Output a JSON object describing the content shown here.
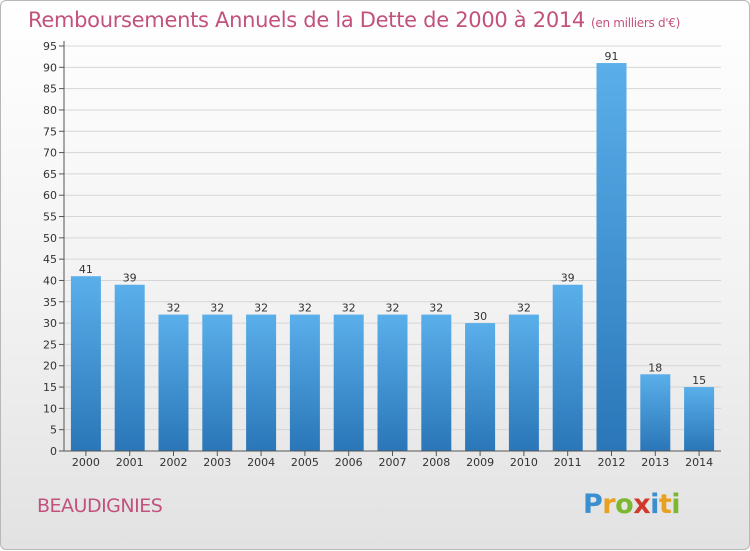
{
  "chart_data": {
    "type": "bar",
    "title": "Remboursements Annuels de la Dette de 2000 à 2014",
    "unit_note": "(en milliers d'€)",
    "categories": [
      "2000",
      "2001",
      "2002",
      "2003",
      "2004",
      "2005",
      "2006",
      "2007",
      "2008",
      "2009",
      "2010",
      "2011",
      "2012",
      "2013",
      "2014"
    ],
    "values": [
      41,
      39,
      32,
      32,
      32,
      32,
      32,
      32,
      32,
      30,
      32,
      39,
      91,
      18,
      15
    ],
    "ylim": [
      0,
      95
    ],
    "ytick_step": 5,
    "grid": "horizontal",
    "xlabel": "",
    "ylabel": "",
    "bar_color": "#4a97d6"
  },
  "footer": {
    "commune": "BEAUDIGNIES",
    "logo_letters": [
      {
        "ch": "P",
        "color": "#3a8fd0"
      },
      {
        "ch": "r",
        "color": "#e8a020"
      },
      {
        "ch": "o",
        "color": "#7cb82f"
      },
      {
        "ch": "x",
        "color": "#d03a2a"
      },
      {
        "ch": "i",
        "color": "#3a8fd0"
      },
      {
        "ch": "t",
        "color": "#e8a020"
      },
      {
        "ch": "i",
        "color": "#7cb82f"
      }
    ]
  }
}
